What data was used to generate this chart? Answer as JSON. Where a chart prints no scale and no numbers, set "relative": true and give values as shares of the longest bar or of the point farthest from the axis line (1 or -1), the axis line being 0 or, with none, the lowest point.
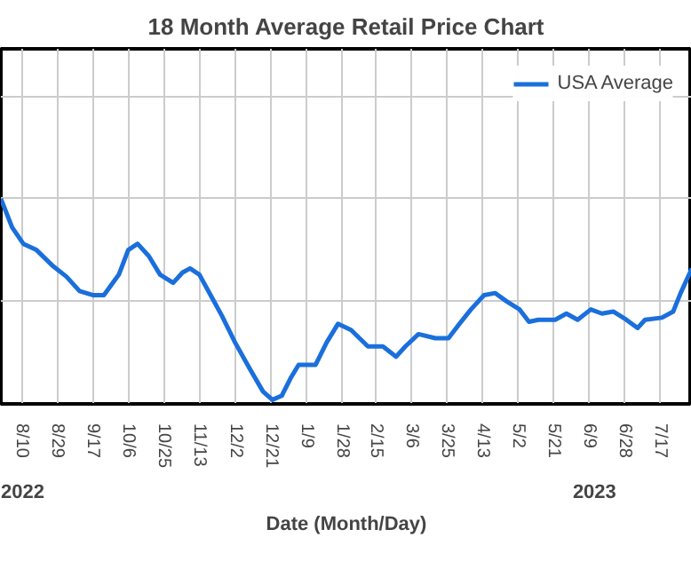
{
  "chart_data": {
    "type": "line",
    "title": "18 Month Average Retail Price Chart",
    "xlabel": "Date (Month/Day)",
    "relative": true,
    "grid": true,
    "legend": "top right",
    "marker": "none",
    "line_style": "solid",
    "annotations": [
      "2022",
      "2023"
    ],
    "xlim": [
      "2022-07-30",
      "2023-08-03"
    ],
    "xticks": [
      {
        "value": "2022-08-10",
        "label": "8/10"
      },
      {
        "value": "2022-08-29",
        "label": "8/29"
      },
      {
        "value": "2022-09-17",
        "label": "9/17"
      },
      {
        "value": "2022-10-06",
        "label": "10/6"
      },
      {
        "value": "2022-10-25",
        "label": "10/25"
      },
      {
        "value": "2022-11-13",
        "label": "11/13"
      },
      {
        "value": "2022-12-02",
        "label": "12/2"
      },
      {
        "value": "2022-12-21",
        "label": "12/21"
      },
      {
        "value": "2023-01-09",
        "label": "1/9"
      },
      {
        "value": "2023-01-28",
        "label": "1/28"
      },
      {
        "value": "2023-02-15",
        "label": "2/15"
      },
      {
        "value": "2023-03-06",
        "label": "3/6"
      },
      {
        "value": "2023-03-25",
        "label": "3/25"
      },
      {
        "value": "2023-04-13",
        "label": "4/13"
      },
      {
        "value": "2023-05-02",
        "label": "5/2"
      },
      {
        "value": "2023-05-21",
        "label": "5/21"
      },
      {
        "value": "2023-06-09",
        "label": "6/9"
      },
      {
        "value": "2023-06-28",
        "label": "6/28"
      },
      {
        "value": "2023-07-17",
        "label": "7/17"
      }
    ],
    "x": [
      "2022-07-30",
      "2022-08-05",
      "2022-08-11",
      "2022-08-18",
      "2022-08-27",
      "2022-09-03",
      "2022-09-10",
      "2022-09-17",
      "2022-09-23",
      "2022-10-01",
      "2022-10-06",
      "2022-10-11",
      "2022-10-17",
      "2022-10-23",
      "2022-10-30",
      "2022-11-04",
      "2022-11-08",
      "2022-11-13",
      "2022-11-19",
      "2022-11-25",
      "2022-12-02",
      "2022-12-10",
      "2022-12-17",
      "2022-12-22",
      "2022-12-27",
      "2023-01-01",
      "2023-01-05",
      "2023-01-14",
      "2023-01-20",
      "2023-01-26",
      "2023-02-02",
      "2023-02-11",
      "2023-02-19",
      "2023-02-26",
      "2023-03-03",
      "2023-03-10",
      "2023-03-19",
      "2023-03-26",
      "2023-03-31",
      "2023-04-07",
      "2023-04-14",
      "2023-04-20",
      "2023-04-26",
      "2023-05-03",
      "2023-05-08",
      "2023-05-13",
      "2023-05-22",
      "2023-05-28",
      "2023-06-03",
      "2023-06-10",
      "2023-06-16",
      "2023-06-22",
      "2023-06-29",
      "2023-07-05",
      "2023-07-09",
      "2023-07-18",
      "2023-07-24",
      "2023-07-28",
      "2023-08-03"
    ],
    "series": [
      {
        "name": "USA Average",
        "color": "#1a6fdc",
        "values": [
          1.0,
          0.86,
          0.78,
          0.75,
          0.67,
          0.62,
          0.55,
          0.53,
          0.53,
          0.63,
          0.75,
          0.78,
          0.72,
          0.63,
          0.59,
          0.64,
          0.66,
          0.63,
          0.53,
          0.43,
          0.3,
          0.17,
          0.06,
          0.02,
          0.04,
          0.13,
          0.19,
          0.19,
          0.3,
          0.39,
          0.36,
          0.28,
          0.28,
          0.23,
          0.28,
          0.34,
          0.32,
          0.32,
          0.38,
          0.46,
          0.53,
          0.54,
          0.5,
          0.46,
          0.4,
          0.41,
          0.41,
          0.44,
          0.41,
          0.46,
          0.44,
          0.45,
          0.41,
          0.37,
          0.41,
          0.42,
          0.45,
          0.54,
          0.66
        ]
      }
    ]
  }
}
